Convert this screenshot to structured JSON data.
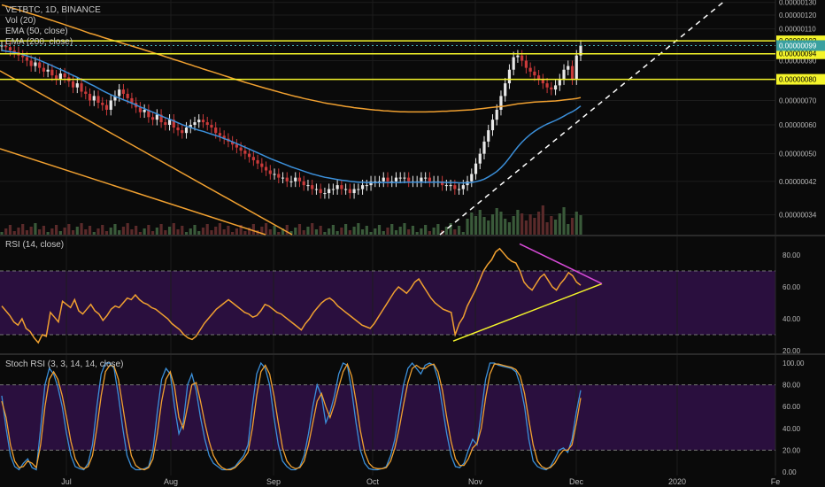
{
  "legend": {
    "symbol_line": "VETBTC, 1D, BINANCE",
    "vol_line": "Vol (20)",
    "ema50_line": "EMA (50, close)",
    "ema200_line": "EMA (200, close)"
  },
  "rsi_title": "RSI (14, close)",
  "stoch_title": "Stoch RSI (3, 3, 14, 14, close)",
  "colors": {
    "background": "#0a0a0a",
    "up_candle": "#e8e8e8",
    "down_candle": "#c93a3a",
    "ema50": "#3b8fd9",
    "ema200": "#f0a030",
    "level_lines": "#f4f42a",
    "trend_lines": "#f0a030",
    "support_dashed": "#ffffff",
    "rsi_line": "#f0a030",
    "rsi_band": "#2a0f3e",
    "rsi_resistance": "#d64ad6",
    "stoch_k": "#3b8fd9",
    "stoch_d": "#f0a030",
    "grid": "#1c1c1c",
    "price_label_bg": "#f4f42a",
    "price_label_text": "#000000"
  },
  "chart_data": [
    {
      "type": "line",
      "panel": "price",
      "symbol": "VETBTC",
      "timeframe": "1D",
      "exchange": "BINANCE",
      "price_axis": {
        "ticks": [
          "0.00000130",
          "0.00000120",
          "0.00000110",
          "0.00000100",
          "0.00000090",
          "0.00000080",
          "0.00000070",
          "0.00000060",
          "0.00000050",
          "0.00000042",
          "0.00000034"
        ],
        "ylim": [
          3e-07,
          1.32e-06
        ],
        "scale": "log"
      },
      "x_axis": {
        "ticks": [
          "Jul",
          "Aug",
          "Sep",
          "Oct",
          "Nov",
          "Dec",
          "2020",
          "Fe"
        ]
      },
      "close_approx": [
        99,
        98,
        96,
        95,
        93,
        92,
        90,
        87,
        89,
        86,
        84,
        85,
        82,
        80,
        83,
        81,
        79,
        76,
        78,
        74,
        73,
        70,
        72,
        69,
        68,
        66,
        70,
        72,
        75,
        73,
        71,
        69,
        67,
        65,
        66,
        63,
        62,
        64,
        61,
        60,
        62,
        59,
        58,
        57,
        59,
        60,
        61,
        62,
        61,
        60,
        59,
        57,
        56,
        55,
        54,
        53,
        52,
        51,
        50,
        49,
        48,
        47,
        46,
        45,
        44,
        44,
        43,
        43,
        42,
        42,
        43,
        42,
        41,
        41,
        40,
        40,
        39,
        39,
        40,
        40,
        41,
        40,
        40,
        39,
        40,
        40,
        41,
        41,
        42,
        42,
        42,
        43,
        42,
        42,
        43,
        43,
        43,
        42,
        42,
        42,
        43,
        43,
        42,
        42,
        42,
        41,
        41,
        41,
        40,
        40,
        41,
        42,
        44,
        47,
        50,
        54,
        58,
        62,
        66,
        72,
        78,
        85,
        92,
        93,
        90,
        86,
        84,
        82,
        80,
        78,
        76,
        75,
        77,
        80,
        85,
        87,
        80,
        93,
        99
      ],
      "ema50": [
        96,
        95.6,
        95.2,
        94.8,
        94.2,
        93.5,
        92.8,
        92,
        91.1,
        90.2,
        89.2,
        88.2,
        87.2,
        86.1,
        85.1,
        84.1,
        83,
        82,
        81,
        79.9,
        78.8,
        77.7,
        76.7,
        75.6,
        74.5,
        73.5,
        72.6,
        71.8,
        71.1,
        70.3,
        69.6,
        68.8,
        68,
        67.2,
        66.5,
        65.7,
        65,
        64.3,
        63.5,
        62.8,
        62.2,
        61.5,
        60.8,
        60.1,
        59.5,
        59,
        58.5,
        58,
        57.6,
        57.1,
        56.6,
        56.1,
        55.6,
        55,
        54.5,
        53.9,
        53.3,
        52.7,
        52.1,
        51.5,
        50.9,
        50.3,
        49.7,
        49.1,
        48.5,
        48,
        47.5,
        47,
        46.5,
        46,
        45.6,
        45.2,
        44.8,
        44.4,
        44,
        43.7,
        43.4,
        43.1,
        42.9,
        42.7,
        42.5,
        42.3,
        42.2,
        42,
        41.9,
        41.8,
        41.8,
        41.7,
        41.7,
        41.7,
        41.7,
        41.7,
        41.7,
        41.7,
        41.7,
        41.7,
        41.8,
        41.8,
        41.8,
        41.8,
        41.8,
        41.8,
        41.8,
        41.8,
        41.8,
        41.8,
        41.7,
        41.7,
        41.7,
        41.6,
        41.6,
        41.6,
        41.7,
        41.9,
        42.2,
        42.6,
        43.2,
        43.9,
        44.7,
        45.8,
        47.1,
        48.7,
        50.5,
        52.2,
        53.8,
        55.2,
        56.5,
        57.6,
        58.6,
        59.5,
        60.3,
        61,
        61.7,
        62.5,
        63.4,
        64.4,
        65.2,
        66.3,
        67.6
      ],
      "ema200": [
        128,
        127,
        126,
        125,
        124,
        123,
        122,
        121,
        120,
        119,
        118,
        117,
        116,
        115,
        114,
        113,
        112,
        111,
        110,
        109,
        108,
        107,
        106.2,
        105.3,
        104.4,
        103.5,
        102.7,
        101.9,
        101.1,
        100.3,
        99.5,
        98.7,
        97.9,
        97.1,
        96.3,
        95.5,
        94.7,
        93.9,
        93.1,
        92.3,
        91.5,
        90.7,
        90,
        89.2,
        88.4,
        87.7,
        86.9,
        86.2,
        85.4,
        84.7,
        84,
        83.3,
        82.6,
        81.9,
        81.2,
        80.5,
        79.8,
        79.2,
        78.5,
        77.9,
        77.3,
        76.7,
        76.1,
        75.5,
        75,
        74.4,
        73.9,
        73.3,
        72.8,
        72.3,
        71.8,
        71.4,
        70.9,
        70.5,
        70.1,
        69.7,
        69.3,
        68.9,
        68.6,
        68.3,
        68,
        67.7,
        67.4,
        67.2,
        66.9,
        66.7,
        66.5,
        66.3,
        66.1,
        65.9,
        65.8,
        65.6,
        65.5,
        65.4,
        65.3,
        65.2,
        65.2,
        65.1,
        65.1,
        65.1,
        65.1,
        65.1,
        65.2,
        65.2,
        65.3,
        65.4,
        65.4,
        65.5,
        65.6,
        65.7,
        65.8,
        65.9,
        66,
        66.2,
        66.4,
        66.6,
        66.8,
        67,
        67.2,
        67.4,
        67.6,
        67.9,
        68.2,
        68.5,
        68.7,
        68.9,
        69.1,
        69.3,
        69.4,
        69.5,
        69.6,
        69.7,
        69.8,
        70,
        70.2,
        70.4,
        70.6,
        70.9,
        71.3
      ],
      "horizontal_levels": [
        "0.00000102",
        "0.00000094",
        "0.00000080"
      ],
      "last_price_label": "0.00000099"
    },
    {
      "type": "line",
      "panel": "RSI (14, close)",
      "ylim": [
        20,
        90
      ],
      "ticks": [
        "80.00",
        "60.00",
        "40.00",
        "20.00"
      ],
      "band": [
        30,
        70
      ],
      "values": [
        48,
        45,
        42,
        38,
        36,
        40,
        34,
        32,
        28,
        25,
        30,
        29,
        44,
        41,
        38,
        51,
        49,
        47,
        52,
        45,
        43,
        46,
        49,
        45,
        43,
        39,
        42,
        46,
        48,
        47,
        50,
        53,
        52,
        55,
        52,
        50,
        49,
        47,
        46,
        44,
        42,
        40,
        37,
        35,
        33,
        30,
        28,
        27,
        29,
        33,
        37,
        40,
        43,
        46,
        48,
        50,
        52,
        50,
        48,
        46,
        44,
        43,
        41,
        42,
        45,
        49,
        48,
        46,
        44,
        43,
        41,
        39,
        37,
        35,
        33,
        37,
        40,
        44,
        47,
        50,
        52,
        53,
        51,
        48,
        46,
        44,
        42,
        40,
        38,
        36,
        35,
        34,
        37,
        41,
        45,
        49,
        53,
        57,
        60,
        58,
        56,
        59,
        63,
        65,
        61,
        57,
        53,
        50,
        48,
        46,
        45,
        44,
        30,
        37,
        41,
        48,
        53,
        58,
        64,
        70,
        74,
        77,
        82,
        84,
        81,
        78,
        76,
        75,
        70,
        63,
        60,
        58,
        62,
        66,
        68,
        64,
        60,
        58,
        62,
        65,
        69,
        67,
        63,
        61
      ],
      "trendlines": [
        "support rising from ~26 (Oct end) to ~62 (Dec)",
        "resistance falling from ~87 (Nov) to ~62 (Dec)"
      ]
    },
    {
      "type": "line",
      "panel": "Stoch RSI (3, 3, 14, 14, close)",
      "ylim": [
        0,
        100
      ],
      "ticks": [
        "100.00",
        "80.00",
        "60.00",
        "40.00",
        "20.00",
        "0.00"
      ],
      "band": [
        20,
        80
      ],
      "series": [
        {
          "name": "K",
          "values": [
            70,
            40,
            15,
            5,
            2,
            8,
            12,
            4,
            2,
            40,
            80,
            95,
            90,
            78,
            60,
            35,
            15,
            5,
            3,
            2,
            8,
            25,
            60,
            90,
            100,
            100,
            95,
            70,
            40,
            15,
            5,
            2,
            2,
            3,
            5,
            20,
            55,
            85,
            95,
            90,
            60,
            35,
            45,
            80,
            90,
            75,
            50,
            30,
            15,
            8,
            5,
            2,
            2,
            3,
            5,
            10,
            15,
            25,
            60,
            90,
            100,
            95,
            80,
            50,
            25,
            10,
            5,
            2,
            2,
            5,
            15,
            35,
            60,
            80,
            70,
            45,
            55,
            70,
            90,
            100,
            98,
            75,
            45,
            20,
            8,
            3,
            2,
            2,
            3,
            5,
            15,
            30,
            55,
            80,
            95,
            100,
            95,
            90,
            98,
            100,
            98,
            85,
            60,
            35,
            15,
            5,
            4,
            8,
            20,
            30,
            25,
            55,
            85,
            100,
            100,
            98,
            97,
            96,
            95,
            92,
            80,
            60,
            30,
            10,
            5,
            3,
            2,
            5,
            12,
            20,
            22,
            18,
            30,
            55,
            75
          ]
        },
        {
          "name": "D",
          "values": [
            65,
            50,
            25,
            10,
            4,
            5,
            10,
            8,
            4,
            25,
            60,
            85,
            92,
            85,
            70,
            50,
            28,
            12,
            5,
            3,
            5,
            15,
            40,
            70,
            92,
            98,
            97,
            85,
            60,
            35,
            15,
            6,
            3,
            2,
            4,
            12,
            35,
            65,
            85,
            92,
            78,
            50,
            40,
            60,
            80,
            82,
            65,
            45,
            28,
            15,
            8,
            4,
            2,
            2,
            4,
            8,
            12,
            18,
            40,
            70,
            92,
            98,
            90,
            70,
            45,
            22,
            10,
            5,
            3,
            4,
            10,
            25,
            45,
            65,
            72,
            60,
            50,
            62,
            78,
            92,
            99,
            88,
            65,
            38,
            18,
            8,
            4,
            3,
            3,
            4,
            10,
            22,
            40,
            62,
            82,
            95,
            98,
            95,
            95,
            98,
            99,
            92,
            75,
            50,
            28,
            12,
            6,
            6,
            12,
            22,
            26,
            40,
            68,
            90,
            99,
            99,
            98,
            97,
            96,
            94,
            88,
            72,
            48,
            25,
            10,
            5,
            3,
            4,
            8,
            15,
            20,
            20,
            25,
            45,
            68
          ]
        }
      ]
    }
  ]
}
